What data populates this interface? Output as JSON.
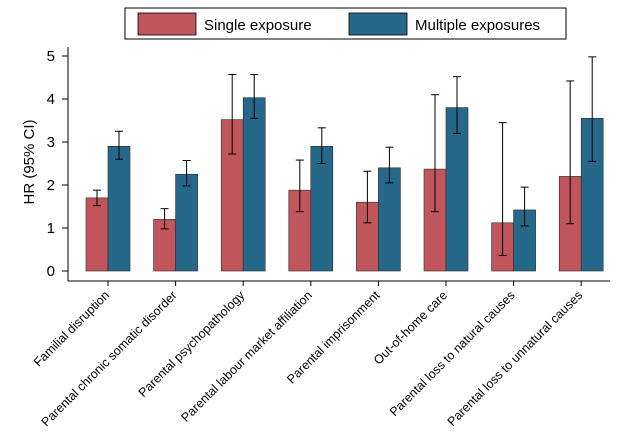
{
  "chart_data": {
    "type": "bar",
    "title": "",
    "xlabel": "",
    "ylabel": "HR (95% CI)",
    "ylim": [
      0,
      5
    ],
    "yticks": [
      0,
      1,
      2,
      3,
      4,
      5
    ],
    "grid": false,
    "legend_position": "top",
    "categories": [
      "Familial disruption",
      "Parental chronic somatic disorder",
      "Parental psychopathology",
      "Parental labour market affiliation",
      "Parental imprisonment",
      "Out-of-home care",
      "Parental loss to natural causes",
      "Parental loss to unnatural causes"
    ],
    "series": [
      {
        "name": "Single exposure",
        "color": "#c0555c",
        "values": [
          1.7,
          1.2,
          3.52,
          1.88,
          1.6,
          2.37,
          1.12,
          2.2
        ],
        "ci_low": [
          1.52,
          0.98,
          2.72,
          1.38,
          1.12,
          1.38,
          0.36,
          1.1
        ],
        "ci_high": [
          1.88,
          1.45,
          4.57,
          2.58,
          2.32,
          4.1,
          3.45,
          4.42
        ]
      },
      {
        "name": "Multiple exposures",
        "color": "#256889",
        "values": [
          2.9,
          2.25,
          4.03,
          2.9,
          2.4,
          3.8,
          1.42,
          3.55
        ],
        "ci_low": [
          2.6,
          1.98,
          3.55,
          2.5,
          2.05,
          3.2,
          1.05,
          2.55
        ],
        "ci_high": [
          3.25,
          2.57,
          4.57,
          3.33,
          2.88,
          4.52,
          1.95,
          4.98
        ]
      }
    ]
  }
}
